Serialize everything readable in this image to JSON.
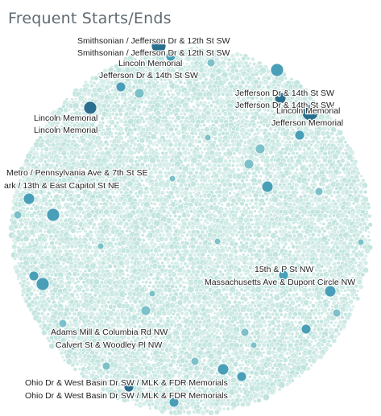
{
  "title": "Frequent Starts/Ends",
  "chart_data": {
    "type": "packed-bubble",
    "title": "Frequent Starts/Ends",
    "colors": {
      "background_bubble": "#bfe3dd",
      "medium_bubble": "#4a9fb8",
      "dark_bubble": "#2a6f8e"
    },
    "labels": [
      "Smithsonian / Jefferson Dr & 12th St SW",
      "Smithsonian / Jefferson Dr & 12th St SW",
      "Lincoln Memorial",
      "Jefferson Dr & 14th St SW",
      "Jefferson Dr & 14th St SW",
      "Jefferson Dr & 14th St SW",
      "Lincoln Memorial",
      "Jefferson Memorial",
      "Lincoln Memorial",
      "Lincoln Memorial",
      "Metro / Pennsylvania Ave & 7th St SE",
      "ark / 13th & East Capitol St NE",
      "15th & P St NW",
      "Massachusetts Ave & Dupont Circle NW",
      "Adams Mill & Columbia Rd NW",
      "Calvert St & Woodley Pl NW",
      "Ohio Dr & West Basin Dr SW / MLK & FDR Memorials",
      "Ohio Dr & West Basin Dr SW / MLK & FDR Memorials"
    ]
  }
}
